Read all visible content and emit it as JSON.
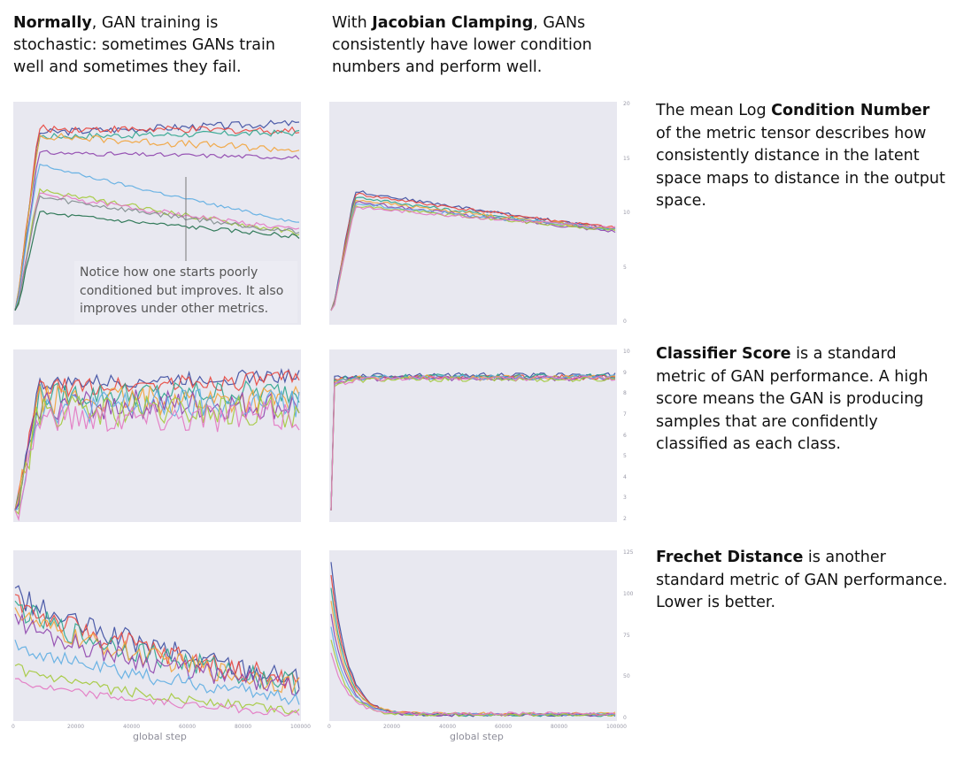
{
  "headers": {
    "left_bold": "Normally",
    "left_rest": ", GAN training is stochastic: sometimes GANs train well and sometimes they fail.",
    "mid_pre": "With ",
    "mid_bold": "Jacobian Clamping",
    "mid_rest": ", GANs consistently have lower condition numbers and perform well."
  },
  "descriptions": {
    "condition_pre": "The mean Log ",
    "condition_bold": "Condition Number",
    "condition_rest": " of the metric tensor describes  how consistently distance in the latent space maps to distance in the output space.",
    "classifier_bold": "Classifier Score",
    "classifier_rest": " is a standard metric of GAN performance. A high score means the GAN is producing samples that are confidently classified as each class.",
    "frechet_bold": "Frechet Distance",
    "frechet_rest": " is another standard metric of GAN performance. Lower is better."
  },
  "callout": "Notice how one starts poorly conditioned but improves. It also improves under other metrics.",
  "colors": {
    "panel_bg": "#e8e8f0",
    "series": [
      "#3b4ba0",
      "#e8453c",
      "#2ca58d",
      "#f2a33a",
      "#8e44ad",
      "#5dade2",
      "#a3c93a",
      "#e377c2",
      "#7f8c8d",
      "#1f6f4a"
    ]
  },
  "chart_data": [
    {
      "id": "condition_normal",
      "type": "line",
      "x_range": [
        0,
        100000
      ],
      "ylim": [
        0,
        20
      ],
      "curves": [
        {
          "start": 17.0,
          "end": 18.5,
          "peak": 17.5,
          "noise": 0.35
        },
        {
          "start": 17.5,
          "end": 17.8,
          "peak": 18.0,
          "noise": 0.35
        },
        {
          "start": 16.8,
          "end": 17.6,
          "peak": 17.2,
          "noise": 0.3
        },
        {
          "start": 17.2,
          "end": 16.0,
          "peak": 17.5,
          "noise": 0.35
        },
        {
          "start": 15.5,
          "end": 15.3,
          "peak": 15.8,
          "noise": 0.2
        },
        {
          "start": 15.2,
          "end": 9.2,
          "peak": 15.3,
          "noise": 0.15
        },
        {
          "start": 12.5,
          "end": 8.2,
          "peak": 12.8,
          "noise": 0.25
        },
        {
          "start": 12.0,
          "end": 8.5,
          "peak": 12.3,
          "noise": 0.25
        },
        {
          "start": 11.6,
          "end": 8.3,
          "peak": 12.0,
          "noise": 0.25
        },
        {
          "start": 10.2,
          "end": 7.9,
          "peak": 10.4,
          "noise": 0.2
        }
      ]
    },
    {
      "id": "condition_clamped",
      "type": "line",
      "x_range": [
        0,
        100000
      ],
      "ylim": [
        0,
        20
      ],
      "ytick_labels": [
        "20",
        "15",
        "10",
        "5",
        "0"
      ],
      "curves": [
        {
          "start": 12.4,
          "end": 8.6,
          "peak": 12.6,
          "noise": 0.15
        },
        {
          "start": 12.1,
          "end": 8.7,
          "peak": 12.3,
          "noise": 0.15
        },
        {
          "start": 11.8,
          "end": 8.5,
          "peak": 12.0,
          "noise": 0.15
        },
        {
          "start": 11.5,
          "end": 8.6,
          "peak": 11.7,
          "noise": 0.15
        },
        {
          "start": 11.3,
          "end": 8.4,
          "peak": 11.5,
          "noise": 0.15
        },
        {
          "start": 11.1,
          "end": 8.6,
          "peak": 11.3,
          "noise": 0.15
        },
        {
          "start": 10.9,
          "end": 8.5,
          "peak": 11.1,
          "noise": 0.15
        },
        {
          "start": 10.7,
          "end": 8.7,
          "peak": 10.9,
          "noise": 0.15
        }
      ]
    },
    {
      "id": "classifier_normal",
      "type": "line",
      "x_range": [
        0,
        100000
      ],
      "ylim": [
        2,
        10
      ],
      "curves": [
        {
          "start": 7.5,
          "end": 9.0,
          "peak": 8.5,
          "noise": 0.35
        },
        {
          "start": 7.0,
          "end": 8.8,
          "peak": 8.3,
          "noise": 0.45
        },
        {
          "start": 6.5,
          "end": 8.2,
          "peak": 8.0,
          "noise": 0.6
        },
        {
          "start": 6.2,
          "end": 7.8,
          "peak": 7.8,
          "noise": 0.7
        },
        {
          "start": 6.0,
          "end": 7.5,
          "peak": 7.6,
          "noise": 0.75
        },
        {
          "start": 5.8,
          "end": 7.6,
          "peak": 7.4,
          "noise": 0.8
        },
        {
          "start": 5.5,
          "end": 7.2,
          "peak": 7.2,
          "noise": 0.8
        },
        {
          "start": 5.3,
          "end": 7.0,
          "peak": 7.0,
          "noise": 0.8
        }
      ]
    },
    {
      "id": "classifier_clamped",
      "type": "line",
      "x_range": [
        0,
        100000
      ],
      "ylim": [
        2,
        10
      ],
      "ytick_labels": [
        "10",
        "9",
        "8",
        "7",
        "6",
        "5",
        "4",
        "3",
        "2"
      ],
      "curves": [
        {
          "start": 8.6,
          "end": 9.0,
          "peak": 8.8,
          "noise": 0.12
        },
        {
          "start": 8.5,
          "end": 8.9,
          "peak": 8.7,
          "noise": 0.12
        },
        {
          "start": 8.4,
          "end": 8.95,
          "peak": 8.7,
          "noise": 0.12
        },
        {
          "start": 8.3,
          "end": 8.9,
          "peak": 8.6,
          "noise": 0.12
        },
        {
          "start": 8.2,
          "end": 8.85,
          "peak": 8.6,
          "noise": 0.12
        },
        {
          "start": 8.1,
          "end": 8.9,
          "peak": 8.5,
          "noise": 0.12
        },
        {
          "start": 8.0,
          "end": 8.8,
          "peak": 8.5,
          "noise": 0.12
        },
        {
          "start": 7.9,
          "end": 8.85,
          "peak": 8.4,
          "noise": 0.12
        }
      ]
    },
    {
      "id": "frechet_normal",
      "type": "line",
      "x_range": [
        0,
        100000
      ],
      "x_ticks": [
        "0",
        "20000",
        "40000",
        "60000",
        "80000",
        "100000"
      ],
      "xlabel": "global step",
      "ylim": [
        0,
        125
      ],
      "curves": [
        {
          "start": 100,
          "end": 30,
          "peak": 110,
          "noise": 9
        },
        {
          "start": 95,
          "end": 28,
          "peak": 105,
          "noise": 9
        },
        {
          "start": 90,
          "end": 26,
          "peak": 100,
          "noise": 9
        },
        {
          "start": 85,
          "end": 25,
          "peak": 95,
          "noise": 8
        },
        {
          "start": 80,
          "end": 22,
          "peak": 90,
          "noise": 8
        },
        {
          "start": 60,
          "end": 15,
          "peak": 70,
          "noise": 6
        },
        {
          "start": 40,
          "end": 5,
          "peak": 45,
          "noise": 4
        },
        {
          "start": 30,
          "end": 3,
          "peak": 35,
          "noise": 3
        }
      ]
    },
    {
      "id": "frechet_clamped",
      "type": "line",
      "x_range": [
        0,
        100000
      ],
      "x_ticks": [
        "0",
        "20000",
        "40000",
        "60000",
        "80000",
        "100000"
      ],
      "xlabel": "global step",
      "ylim": [
        0,
        125
      ],
      "ytick_labels": [
        "125",
        "100",
        "75",
        "50",
        "0"
      ],
      "curves": [
        {
          "start": 120,
          "end": 2,
          "peak": 120,
          "noise": 1.2
        },
        {
          "start": 110,
          "end": 2.5,
          "peak": 110,
          "noise": 1.2
        },
        {
          "start": 100,
          "end": 2,
          "peak": 100,
          "noise": 1.2
        },
        {
          "start": 90,
          "end": 3,
          "peak": 90,
          "noise": 1.2
        },
        {
          "start": 80,
          "end": 2,
          "peak": 80,
          "noise": 1.2
        },
        {
          "start": 70,
          "end": 2.5,
          "peak": 70,
          "noise": 1.2
        },
        {
          "start": 60,
          "end": 2,
          "peak": 60,
          "noise": 1.2
        },
        {
          "start": 50,
          "end": 3,
          "peak": 50,
          "noise": 1.2
        }
      ]
    }
  ]
}
